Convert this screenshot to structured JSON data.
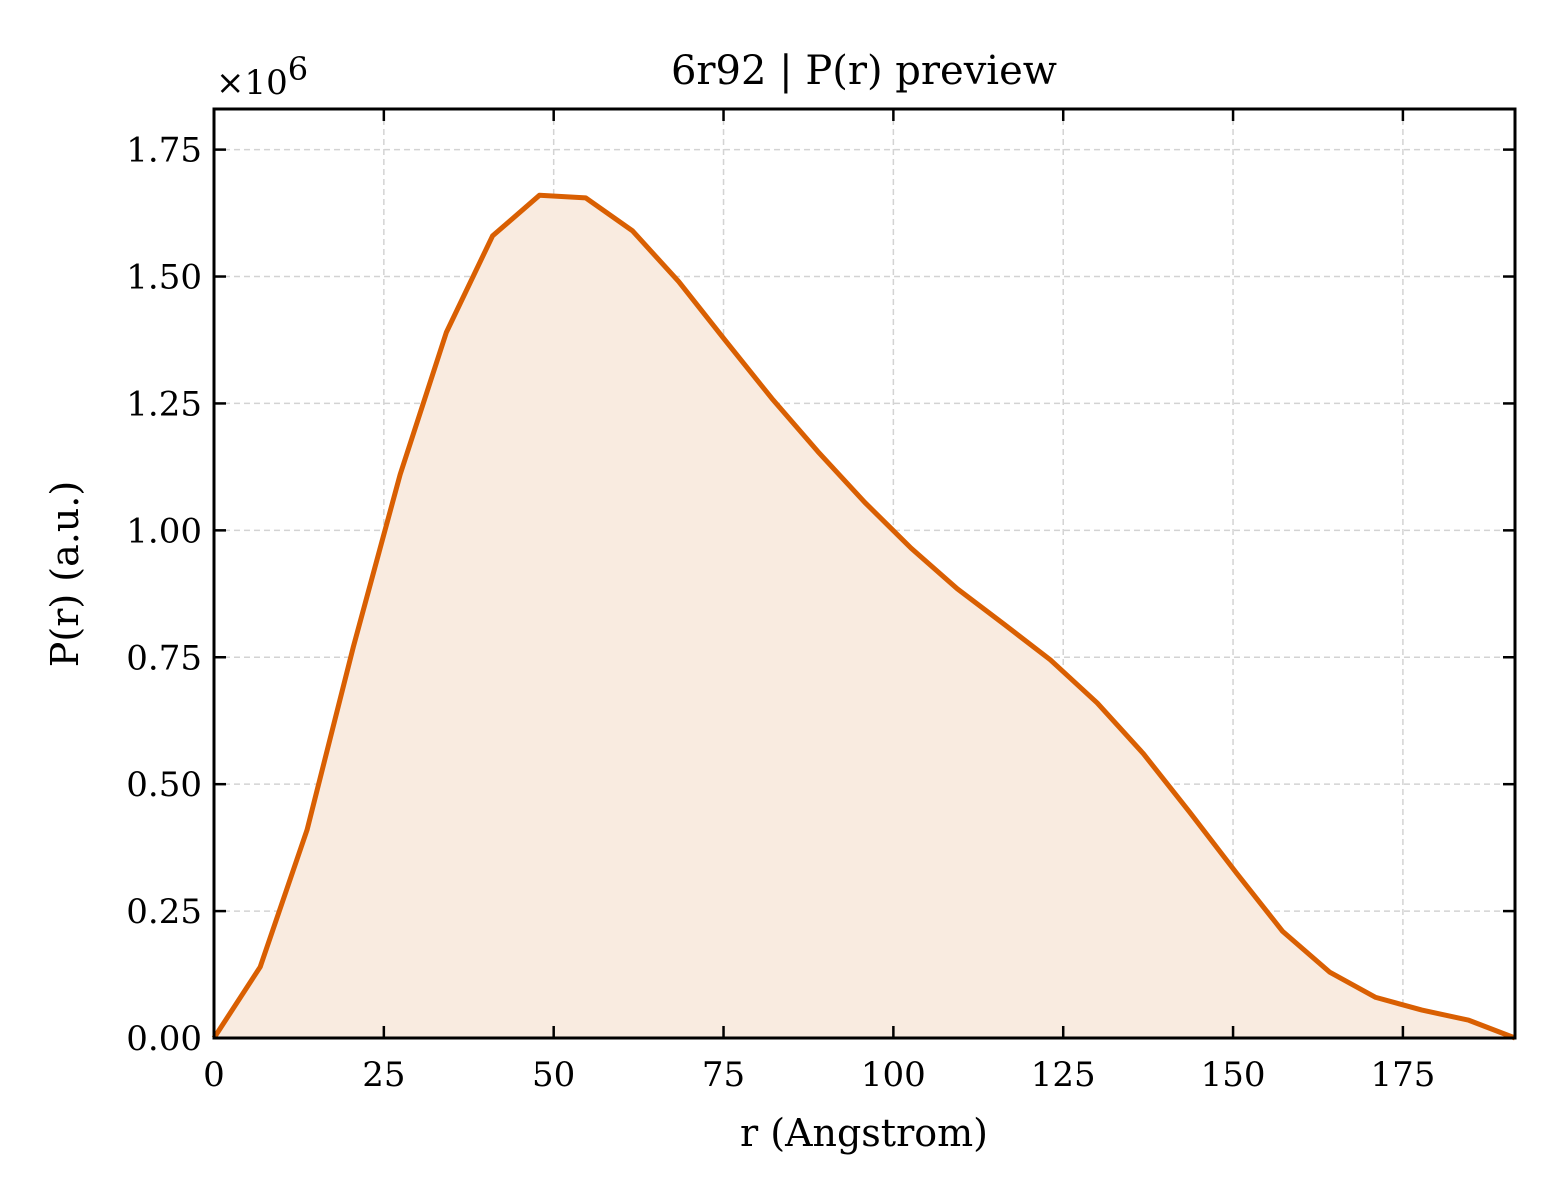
{
  "chart_data": {
    "type": "area",
    "title": "6r92 | P(r) preview",
    "xlabel": "r (Angstrom)",
    "ylabel": "P(r) (a.u.)",
    "y_multiplier_label": "×10",
    "y_multiplier_exponent": "6",
    "xlim": [
      0,
      191.5
    ],
    "ylim": [
      0,
      1.83
    ],
    "xticks": [
      0,
      25,
      50,
      75,
      100,
      125,
      150,
      175
    ],
    "xtick_labels": [
      "0",
      "25",
      "50",
      "75",
      "100",
      "125",
      "150",
      "175"
    ],
    "yticks": [
      0,
      0.25,
      0.5,
      0.75,
      1.0,
      1.25,
      1.5,
      1.75
    ],
    "ytick_labels": [
      "0.00",
      "0.25",
      "0.50",
      "0.75",
      "1.00",
      "1.25",
      "1.50",
      "1.75"
    ],
    "grid": true,
    "colors": {
      "line": "#d95f02",
      "fill": "#f9ebe0"
    },
    "series": [
      {
        "x": [
          0,
          6.8,
          13.7,
          20.5,
          27.4,
          34.2,
          41.0,
          47.9,
          54.7,
          61.6,
          68.4,
          75.2,
          82.1,
          88.9,
          95.8,
          102.6,
          109.4,
          116.3,
          123.1,
          130.0,
          136.8,
          143.6,
          150.5,
          157.3,
          164.2,
          171.0,
          177.8,
          184.7,
          191.5
        ],
        "y": [
          0.0,
          0.14,
          0.41,
          0.77,
          1.11,
          1.39,
          1.58,
          1.66,
          1.655,
          1.59,
          1.49,
          1.375,
          1.26,
          1.155,
          1.055,
          0.965,
          0.885,
          0.815,
          0.745,
          0.66,
          0.56,
          0.445,
          0.325,
          0.21,
          0.13,
          0.08,
          0.055,
          0.035,
          0.0
        ]
      }
    ]
  }
}
